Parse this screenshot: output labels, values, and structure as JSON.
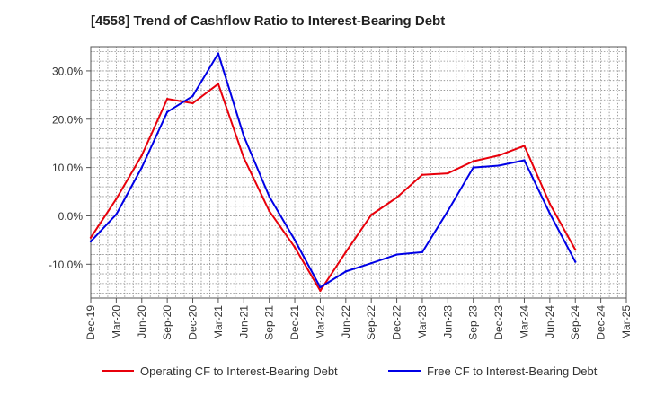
{
  "chart_data": {
    "type": "line",
    "title": "[4558]  Trend of Cashflow Ratio to Interest-Bearing Debt",
    "xlabel": "",
    "ylabel": "",
    "x": [
      "Dec-19",
      "Mar-20",
      "Jun-20",
      "Sep-20",
      "Dec-20",
      "Mar-21",
      "Jun-21",
      "Sep-21",
      "Dec-21",
      "Mar-22",
      "Jun-22",
      "Sep-22",
      "Dec-22",
      "Mar-23",
      "Jun-23",
      "Sep-23",
      "Dec-23",
      "Mar-24",
      "Jun-24",
      "Sep-24",
      "Dec-24",
      "Mar-25"
    ],
    "y_ticks": [
      30,
      20,
      10,
      0,
      -10
    ],
    "y_tick_labels": [
      "30.0%",
      "20.0%",
      "10.0%",
      "0.0%",
      "-10.0%"
    ],
    "ylim": [
      -17,
      35
    ],
    "grid": true,
    "legend_position": "bottom",
    "series": [
      {
        "name": "Operating CF to Interest-Bearing Debt",
        "color": "#e8000b",
        "values": [
          -4.5,
          3.5,
          12.5,
          24.2,
          23.3,
          27.3,
          12.0,
          1.0,
          -6.5,
          -15.5,
          -7.5,
          0.2,
          3.8,
          8.5,
          8.8,
          11.3,
          12.5,
          14.5,
          2.5,
          -7.0,
          null,
          null
        ]
      },
      {
        "name": "Free CF to Interest-Bearing Debt",
        "color": "#0000e6",
        "values": [
          -5.3,
          0.3,
          10.0,
          21.5,
          24.8,
          33.6,
          16.5,
          4.0,
          -5.0,
          -14.8,
          -11.5,
          -9.8,
          -8.0,
          -7.5,
          1.0,
          10.0,
          10.4,
          11.5,
          0.5,
          -9.5,
          null,
          null
        ]
      }
    ]
  }
}
